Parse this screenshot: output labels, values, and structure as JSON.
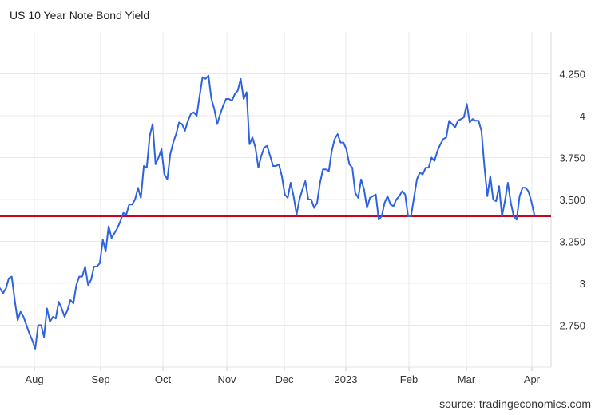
{
  "chart_data": {
    "type": "line",
    "title": "US 10 Year Note Bond Yield",
    "source": "source: tradingeconomics.com",
    "ylim": [
      2.5,
      4.5
    ],
    "y_ticks": [
      {
        "value": 2.75,
        "label": "2.750"
      },
      {
        "value": 3.0,
        "label": "3"
      },
      {
        "value": 3.25,
        "label": "3.250"
      },
      {
        "value": 3.5,
        "label": "3.500"
      },
      {
        "value": 3.75,
        "label": "3.750"
      },
      {
        "value": 4.0,
        "label": "4"
      },
      {
        "value": 4.25,
        "label": "4.250"
      }
    ],
    "x_ticks": [
      "Aug",
      "Sep",
      "Oct",
      "Nov",
      "Dec",
      "2023",
      "Feb",
      "Mar",
      "Apr"
    ],
    "reference_line": {
      "value": 3.4,
      "color": "#d0021b"
    },
    "series": [
      {
        "color": "#2f62e0",
        "values": [
          2.97,
          2.94,
          2.97,
          3.03,
          3.04,
          2.9,
          2.78,
          2.83,
          2.8,
          2.75,
          2.7,
          2.66,
          2.61,
          2.75,
          2.75,
          2.68,
          2.85,
          2.77,
          2.8,
          2.79,
          2.89,
          2.85,
          2.8,
          2.84,
          2.9,
          2.88,
          2.99,
          3.04,
          3.04,
          3.1,
          2.99,
          3.02,
          3.1,
          3.1,
          3.12,
          3.26,
          3.19,
          3.34,
          3.27,
          3.3,
          3.33,
          3.37,
          3.42,
          3.41,
          3.47,
          3.47,
          3.5,
          3.57,
          3.51,
          3.7,
          3.69,
          3.88,
          3.95,
          3.71,
          3.75,
          3.8,
          3.65,
          3.62,
          3.77,
          3.84,
          3.89,
          3.96,
          3.95,
          3.91,
          3.97,
          4.01,
          4.02,
          4.0,
          4.12,
          4.23,
          4.22,
          4.24,
          4.1,
          4.04,
          3.95,
          4.01,
          4.06,
          4.1,
          4.1,
          4.09,
          4.13,
          4.15,
          4.22,
          4.1,
          4.14,
          3.83,
          3.87,
          3.81,
          3.69,
          3.76,
          3.81,
          3.82,
          3.76,
          3.7,
          3.7,
          3.71,
          3.64,
          3.53,
          3.51,
          3.6,
          3.52,
          3.41,
          3.5,
          3.56,
          3.61,
          3.5,
          3.5,
          3.45,
          3.48,
          3.6,
          3.68,
          3.68,
          3.67,
          3.79,
          3.86,
          3.89,
          3.84,
          3.84,
          3.8,
          3.71,
          3.69,
          3.54,
          3.51,
          3.62,
          3.56,
          3.45,
          3.51,
          3.52,
          3.53,
          3.38,
          3.4,
          3.48,
          3.52,
          3.47,
          3.46,
          3.5,
          3.52,
          3.55,
          3.53,
          3.4,
          3.4,
          3.51,
          3.62,
          3.66,
          3.65,
          3.69,
          3.69,
          3.75,
          3.73,
          3.79,
          3.83,
          3.86,
          3.87,
          3.97,
          3.95,
          3.93,
          3.97,
          3.98,
          3.99,
          4.07,
          3.96,
          3.98,
          3.97,
          3.97,
          3.91,
          3.7,
          3.52,
          3.64,
          3.5,
          3.49,
          3.58,
          3.4,
          3.49,
          3.6,
          3.48,
          3.4,
          3.38,
          3.52,
          3.57,
          3.57,
          3.55,
          3.49,
          3.41
        ]
      }
    ]
  }
}
